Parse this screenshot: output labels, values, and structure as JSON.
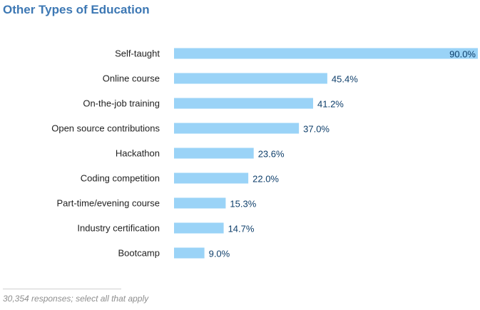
{
  "chart_data": {
    "type": "bar",
    "orientation": "horizontal",
    "title": "Other Types of Education",
    "categories": [
      "Self-taught",
      "Online course",
      "On-the-job training",
      "Open source contributions",
      "Hackathon",
      "Coding competition",
      "Part-time/evening course",
      "Industry certification",
      "Bootcamp"
    ],
    "values": [
      90.0,
      45.4,
      41.2,
      37.0,
      23.6,
      22.0,
      15.3,
      14.7,
      9.0
    ],
    "value_labels": [
      "90.0%",
      "45.4%",
      "41.2%",
      "37.0%",
      "23.6%",
      "22.0%",
      "15.3%",
      "14.7%",
      "9.0%"
    ],
    "xlim": [
      0,
      90
    ],
    "grid": false,
    "bar_color": "#9ad3f7",
    "title_color": "#3d78b4",
    "value_label_color": "#0f3f6b"
  },
  "footnote": "30,354 responses; select all that apply"
}
